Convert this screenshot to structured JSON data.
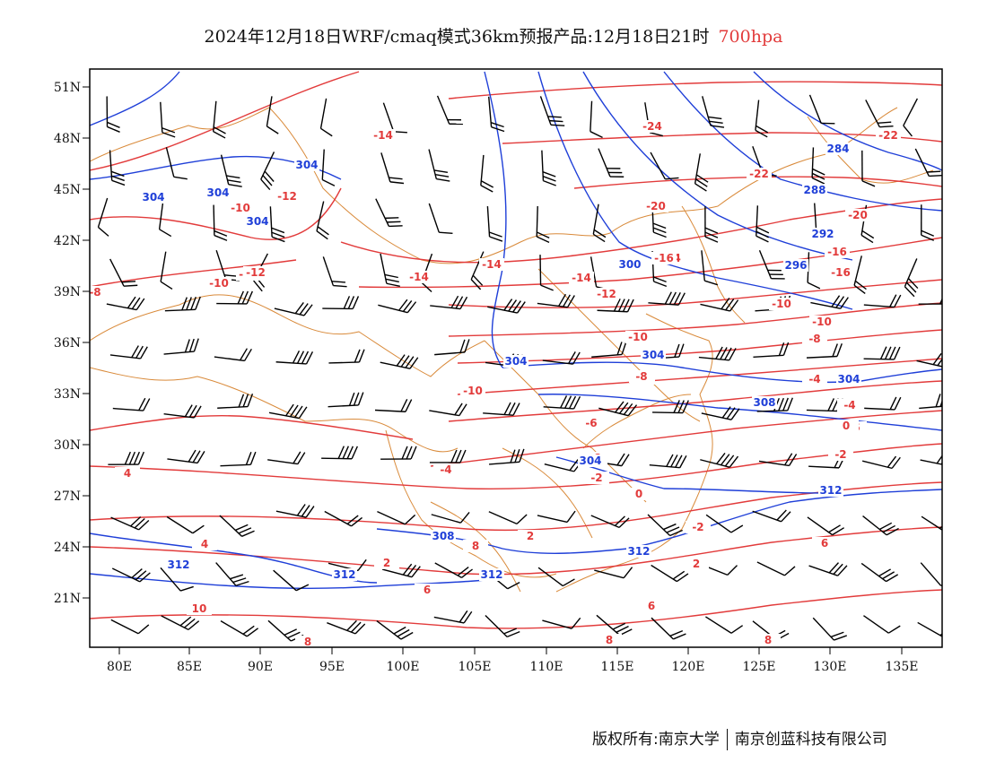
{
  "title": {
    "main": "2024年12月18日WRF/cmaq模式36km预报产品:12月18日21时",
    "level": "700hpa"
  },
  "footer": {
    "left": "版权所有:南京大学",
    "right": "南京创蓝科技有限公司"
  },
  "axes": {
    "lon": [
      "80E",
      "85E",
      "90E",
      "95E",
      "100E",
      "105E",
      "110E",
      "115E",
      "120E",
      "125E",
      "130E",
      "135E"
    ],
    "lat": [
      "51N",
      "48N",
      "45N",
      "42N",
      "39N",
      "36N",
      "33N",
      "30N",
      "27N",
      "24N",
      "21N"
    ]
  },
  "colors": {
    "temperature": "#e23b3b",
    "height": "#1f3fd8",
    "border": "#d98a3a",
    "barb": "#000000"
  },
  "temp_labels": [
    "-24",
    "-22",
    "-22",
    "-20",
    "-20",
    "-16",
    "-16",
    "-14",
    "-14",
    "-14",
    "-14",
    "-12",
    "-12",
    "-12",
    "-10",
    "-10",
    "-10",
    "-10",
    "-10",
    "-8",
    "-8",
    "-8",
    "-6",
    "-6",
    "-6",
    "-4",
    "-4",
    "-4",
    "-2",
    "-2",
    "-2",
    "0",
    "0",
    "2",
    "2",
    "2",
    "4",
    "4",
    "6",
    "6",
    "6",
    "8",
    "8",
    "8",
    "8",
    "10",
    "-16",
    "-14",
    "-12",
    "-10",
    "-8"
  ],
  "height_labels": [
    "304",
    "304",
    "304",
    "304",
    "304",
    "304",
    "300",
    "296",
    "292",
    "288",
    "284",
    "304",
    "308",
    "312",
    "312",
    "308",
    "312",
    "312",
    "312",
    "304"
  ]
}
